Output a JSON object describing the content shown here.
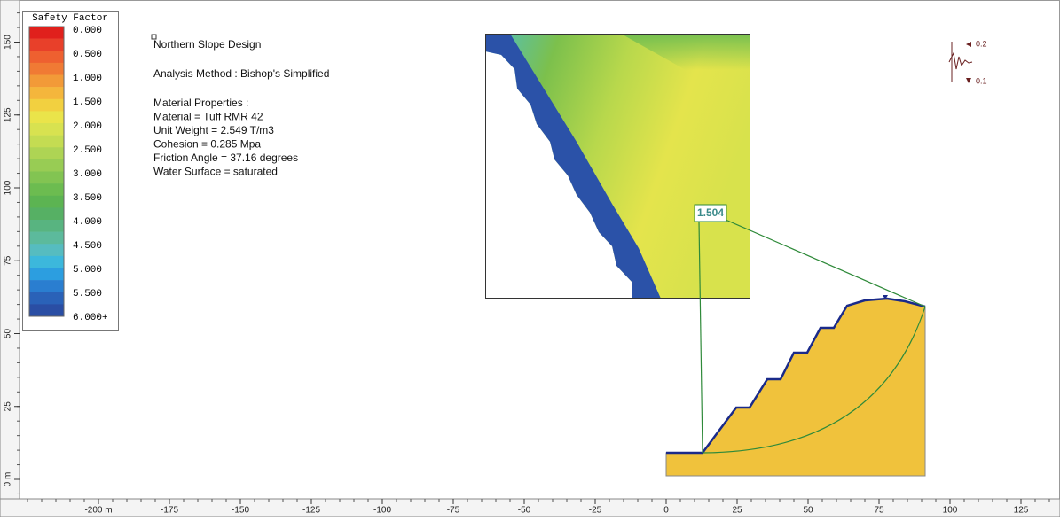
{
  "legend": {
    "title": "Safety Factor",
    "labels": [
      "0.000",
      "0.500",
      "1.000",
      "1.500",
      "2.000",
      "2.500",
      "3.000",
      "3.500",
      "4.000",
      "4.500",
      "5.000",
      "5.500",
      "6.000+"
    ],
    "colors": [
      "#e0201c",
      "#e8402a",
      "#ee6030",
      "#f07a34",
      "#f29a38",
      "#f4b63c",
      "#f2d040",
      "#eae44a",
      "#d8e250",
      "#c4dc52",
      "#aed454",
      "#98cc54",
      "#82c452",
      "#6cbc50",
      "#5cb452",
      "#56b064",
      "#58b480",
      "#5cba9c",
      "#56bcc0",
      "#3cb8dc",
      "#2c9ee0",
      "#2a7ed0",
      "#2a62b8",
      "#2a4ea4"
    ]
  },
  "notes": {
    "title": "Northern Slope Design",
    "method": "Analysis Method : Bishop's Simplified",
    "lines": [
      "Material Properties :",
      "Material = Tuff RMR 42",
      "Unit Weight = 2.549 T/m3",
      "Cohesion = 0.285 Mpa",
      "Friction Angle = 37.16 degrees",
      "Water Surface = saturated"
    ]
  },
  "safety_factor_label": "1.504",
  "seismic": {
    "upper": "0.2",
    "lower": "0.1"
  },
  "ruler": {
    "xticks": [
      {
        "value": -200,
        "label": "-200 m"
      },
      -175,
      -150,
      -125,
      -100,
      -75,
      -50,
      -25,
      0,
      25,
      50,
      75,
      100,
      125
    ],
    "yticks": [
      {
        "value": 0,
        "label": "0 m"
      },
      25,
      50,
      75,
      100,
      125,
      150
    ]
  }
}
